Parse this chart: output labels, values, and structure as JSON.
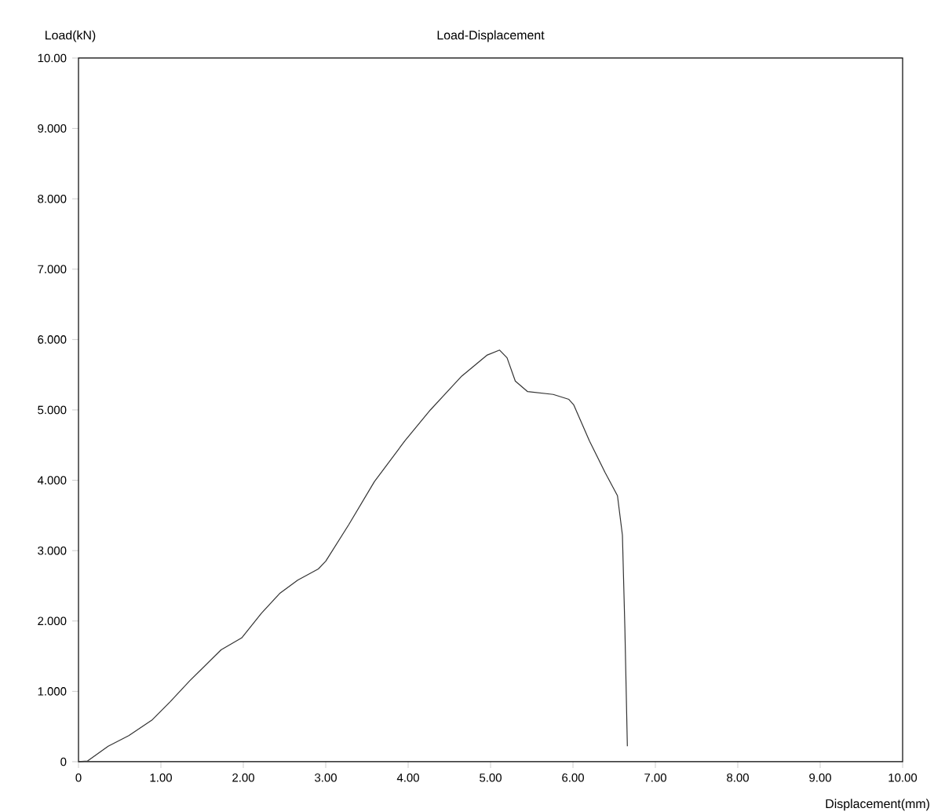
{
  "chart_data": {
    "type": "line",
    "title": "Load-Displacement",
    "xlabel": "Displacement(mm)",
    "ylabel": "Load(kN)",
    "xlim": [
      0,
      10
    ],
    "ylim": [
      0,
      10
    ],
    "xticks": [
      0,
      {
        "value": 1,
        "label": "1.00"
      },
      {
        "value": 2,
        "label": "2.00"
      },
      {
        "value": 3,
        "label": "3.00"
      },
      {
        "value": 4,
        "label": "4.00"
      },
      {
        "value": 5,
        "label": "5.00"
      },
      {
        "value": 6,
        "label": "6.00"
      },
      {
        "value": 7,
        "label": "7.00"
      },
      {
        "value": 8,
        "label": "8.00"
      },
      {
        "value": 9,
        "label": "9.00"
      },
      {
        "value": 10,
        "label": "10.00"
      }
    ],
    "yticks": [
      0,
      {
        "value": 1,
        "label": "1.000"
      },
      {
        "value": 2,
        "label": "2.000"
      },
      {
        "value": 3,
        "label": "3.000"
      },
      {
        "value": 4,
        "label": "4.000"
      },
      {
        "value": 5,
        "label": "5.000"
      },
      {
        "value": 6,
        "label": "6.000"
      },
      {
        "value": 7,
        "label": "7.000"
      },
      {
        "value": 8,
        "label": "8.000"
      },
      {
        "value": 9,
        "label": "9.000"
      },
      {
        "value": 10,
        "label": "10.00"
      }
    ],
    "line_style": "solid",
    "series": [
      {
        "color": "#333333",
        "x": [
          0,
          0.11,
          0.36,
          0.61,
          0.89,
          1.11,
          1.35,
          1.73,
          1.98,
          2.22,
          2.44,
          2.66,
          2.91,
          3.0,
          3.28,
          3.59,
          3.96,
          4.27,
          4.65,
          4.96,
          5.11,
          5.2,
          5.3,
          5.45,
          5.76,
          5.95,
          6.01,
          6.2,
          6.39,
          6.54,
          6.6,
          6.63,
          6.66
        ],
        "values": [
          0,
          0.01,
          0.22,
          0.37,
          0.59,
          0.85,
          1.15,
          1.59,
          1.76,
          2.11,
          2.39,
          2.58,
          2.74,
          2.85,
          3.37,
          3.98,
          4.56,
          5.0,
          5.48,
          5.78,
          5.85,
          5.74,
          5.41,
          5.26,
          5.22,
          5.15,
          5.07,
          4.56,
          4.11,
          3.78,
          3.22,
          1.89,
          0.22
        ]
      }
    ]
  }
}
